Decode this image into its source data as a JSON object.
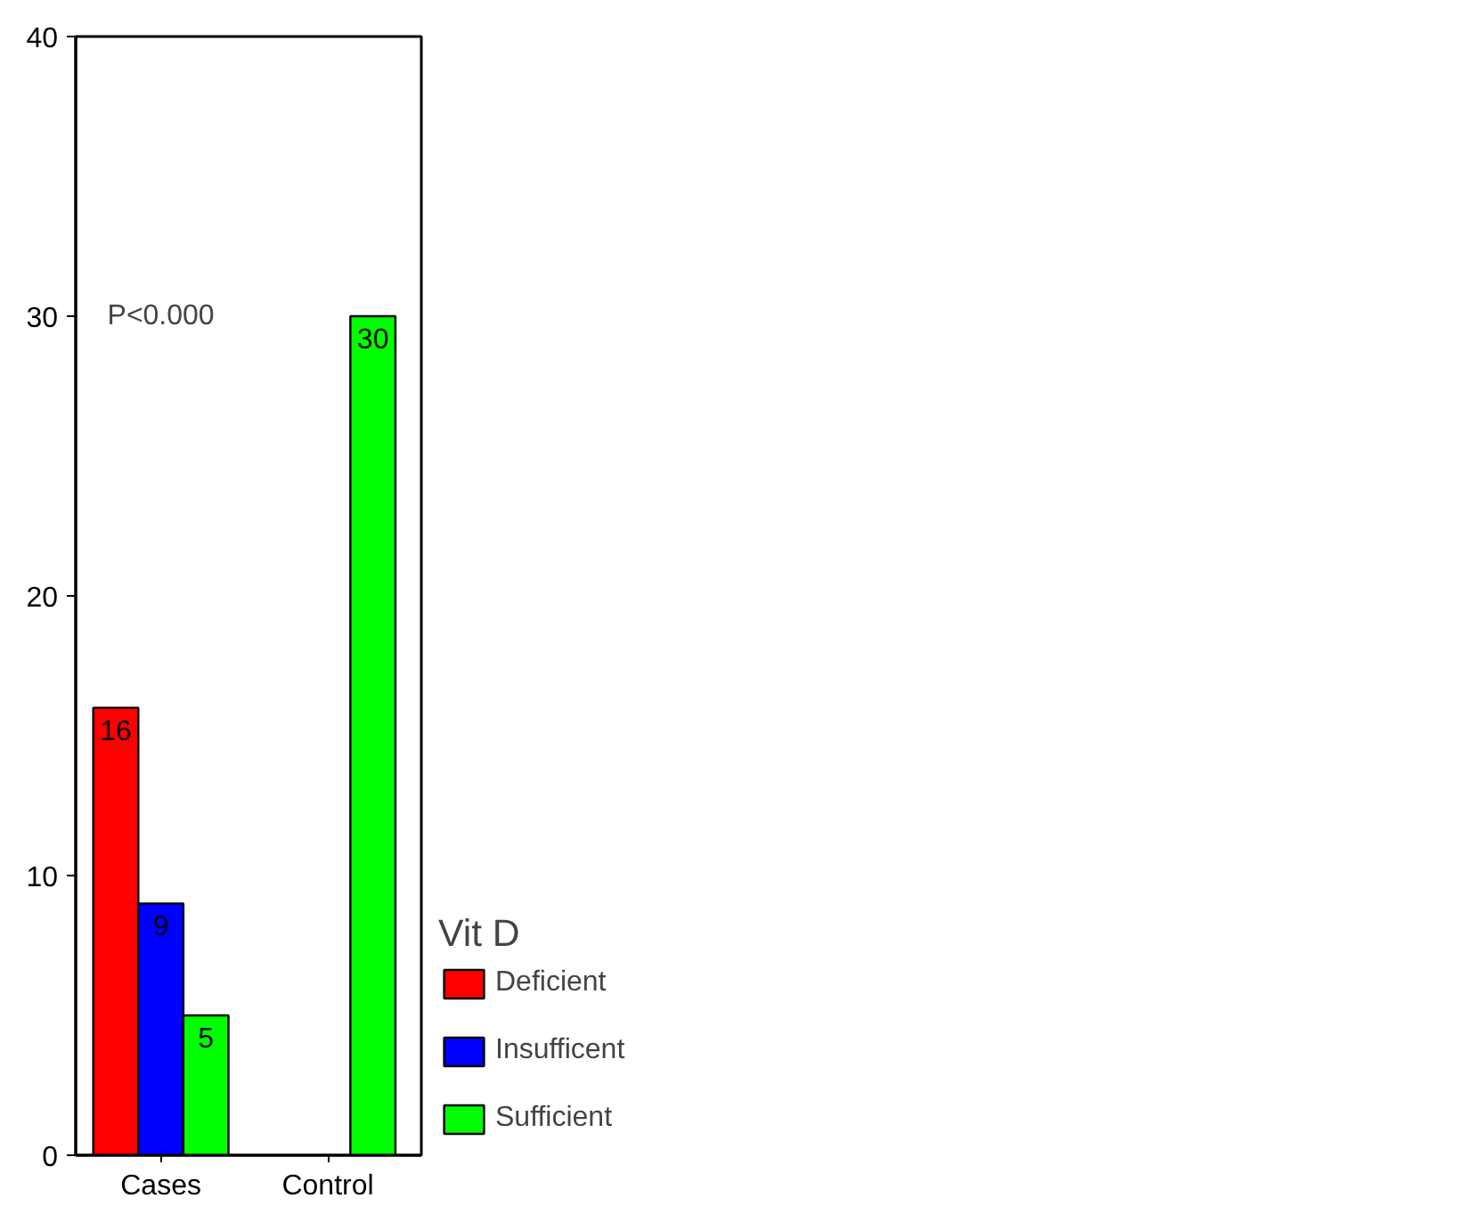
{
  "chart_data": {
    "type": "bar",
    "categories": [
      "Cases",
      "Control"
    ],
    "series": [
      {
        "name": "Deficient",
        "color": "#ff0000",
        "values": [
          16,
          null
        ]
      },
      {
        "name": "Insufficent",
        "color": "#0000ff",
        "values": [
          9,
          null
        ]
      },
      {
        "name": "Sufficient",
        "color": "#00ff00",
        "values": [
          5,
          30
        ]
      }
    ],
    "legend_title": "Vit D",
    "legend": "right",
    "ylim": [
      0,
      40
    ],
    "yticks": [
      0,
      10,
      20,
      30,
      40
    ],
    "grid": false,
    "data_labels": true,
    "annotations": [
      "P<0.000"
    ]
  }
}
